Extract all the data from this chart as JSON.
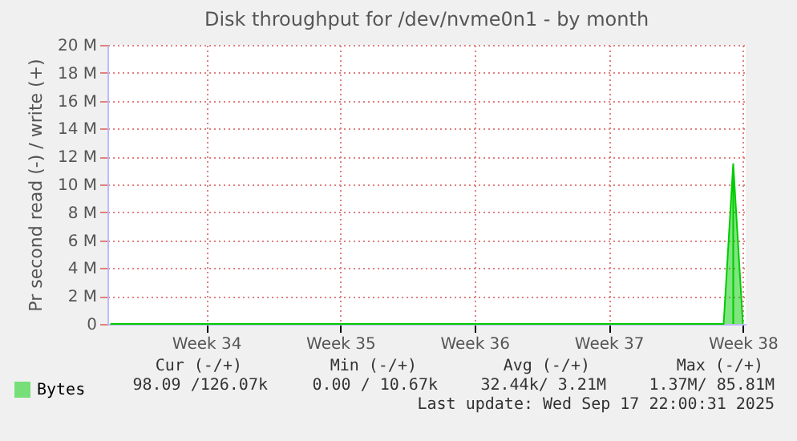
{
  "chart_data": {
    "type": "area",
    "title": "Disk throughput for /dev/nvme0n1 - by month",
    "ylabel": "Pr second read (-) / write (+)",
    "categories": [
      null,
      null,
      null,
      null,
      null,
      null,
      null,
      null,
      null,
      null,
      "Week 34",
      null,
      null,
      null,
      null,
      null,
      null,
      null,
      null,
      null,
      null,
      null,
      null,
      null,
      "Week 35",
      null,
      null,
      null,
      null,
      null,
      null,
      null,
      null,
      null,
      null,
      null,
      null,
      null,
      "Week 36",
      null,
      null,
      null,
      null,
      null,
      null,
      null,
      null,
      null,
      null,
      null,
      null,
      null,
      "Week 37",
      null,
      null,
      null,
      null,
      null,
      null,
      null,
      null,
      null,
      null,
      null,
      null,
      null,
      "Week 38"
    ],
    "series": [
      {
        "name": "Bytes",
        "color": "#00cc00",
        "values": [
          0,
          0,
          0,
          0,
          0,
          0,
          0,
          0,
          0,
          0,
          0,
          0,
          0,
          0,
          0,
          0,
          0,
          0,
          0,
          0,
          0,
          0,
          0,
          0,
          0,
          0,
          0,
          0,
          0,
          0,
          0,
          0,
          0,
          0,
          0,
          0,
          0,
          0,
          0,
          0,
          0,
          0,
          0,
          0,
          0,
          0,
          0,
          0,
          0,
          0,
          0,
          0,
          0,
          0,
          0,
          0,
          0,
          0,
          0,
          0,
          0,
          0,
          0,
          0,
          0,
          11500000,
          100000
        ]
      }
    ],
    "ylim": [
      0,
      20000000
    ],
    "yticks": [
      {
        "value": 0,
        "label": "0"
      },
      {
        "value": 2000000,
        "label": "2 M"
      },
      {
        "value": 4000000,
        "label": "4 M"
      },
      {
        "value": 6000000,
        "label": "6 M"
      },
      {
        "value": 8000000,
        "label": "8 M"
      },
      {
        "value": 10000000,
        "label": "10 M"
      },
      {
        "value": 12000000,
        "label": "12 M"
      },
      {
        "value": 14000000,
        "label": "14 M"
      },
      {
        "value": 16000000,
        "label": "16 M"
      },
      {
        "value": 18000000,
        "label": "18 M"
      },
      {
        "value": 20000000,
        "label": "20 M"
      }
    ],
    "grid": true,
    "legend": "bottom left",
    "annotations": [
      "Cur (-/+)",
      "Min (-/+)",
      "Avg (-/+)",
      "Max (-/+)",
      "98.09 /126.07k",
      "0.00 / 10.67k",
      "32.44k/  3.21M",
      "1.37M/ 85.81M",
      "Last update: Wed Sep 17 22:00:31 2025"
    ]
  }
}
